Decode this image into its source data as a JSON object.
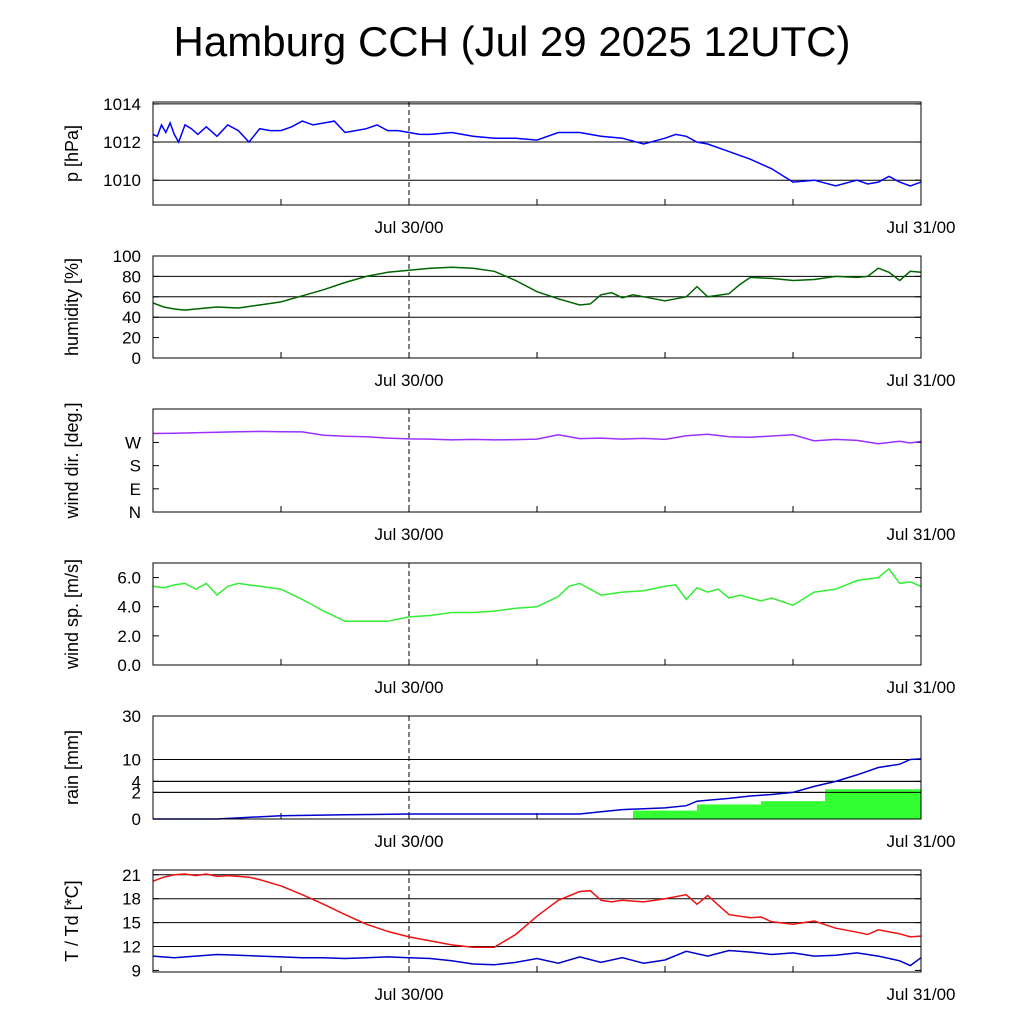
{
  "title": "Hamburg CCH (Jul 29 2025 12UTC)",
  "chart_data": {
    "type": "line",
    "x_range_hours": [
      0,
      36
    ],
    "x_ticks": [
      {
        "h": 12,
        "label": "Jul 30/00"
      },
      {
        "h": 36,
        "label": "Jul 31/00"
      }
    ],
    "panels": [
      {
        "id": "pressure",
        "ylabel": "p [hPa]",
        "scale": "linear",
        "ylim": [
          1008.7,
          1014.1
        ],
        "yticks": [
          1010,
          1012,
          1014
        ],
        "yticklabels": [
          "1010",
          "1012",
          "1014"
        ],
        "grid": [
          1010,
          1012,
          1014
        ],
        "series": [
          {
            "color": "#0000ff",
            "x": [
              0,
              0.2,
              0.4,
              0.6,
              0.8,
              1.0,
              1.2,
              1.5,
              1.8,
              2.1,
              2.5,
              3.0,
              3.5,
              4.0,
              4.5,
              5.0,
              5.5,
              6.0,
              6.5,
              7.0,
              7.5,
              8.0,
              8.5,
              9.0,
              9.5,
              10.0,
              10.5,
              11.0,
              11.5,
              12.0,
              12.5,
              13.0,
              14.0,
              15.0,
              16.0,
              17.0,
              18.0,
              19.0,
              20.0,
              20.5,
              21.0,
              22.0,
              23.0,
              24.0,
              24.5,
              25.0,
              25.5,
              26.0,
              27.0,
              28.0,
              29.0,
              30.0,
              31.0,
              32.0,
              33.0,
              33.5,
              34.0,
              34.5,
              35.0,
              35.5,
              36.0
            ],
            "y": [
              1012.4,
              1012.3,
              1012.9,
              1012.5,
              1013.0,
              1012.4,
              1012.0,
              1012.9,
              1012.7,
              1012.4,
              1012.8,
              1012.3,
              1012.9,
              1012.6,
              1012.0,
              1012.7,
              1012.6,
              1012.6,
              1012.8,
              1013.1,
              1012.9,
              1013.0,
              1013.1,
              1012.5,
              1012.6,
              1012.7,
              1012.9,
              1012.6,
              1012.6,
              1012.5,
              1012.4,
              1012.4,
              1012.5,
              1012.3,
              1012.2,
              1012.2,
              1012.1,
              1012.5,
              1012.5,
              1012.4,
              1012.3,
              1012.2,
              1011.9,
              1012.2,
              1012.4,
              1012.3,
              1012.0,
              1011.9,
              1011.5,
              1011.1,
              1010.6,
              1009.9,
              1010.0,
              1009.7,
              1010.0,
              1009.8,
              1009.9,
              1010.2,
              1009.9,
              1009.7,
              1009.9
            ]
          }
        ]
      },
      {
        "id": "humidity",
        "ylabel": "humidity [%]",
        "scale": "linear",
        "ylim": [
          0,
          100
        ],
        "yticks": [
          0,
          20,
          40,
          60,
          80,
          100
        ],
        "yticklabels": [
          "0",
          "20",
          "40",
          "60",
          "80",
          "100"
        ],
        "grid": [
          40,
          60,
          80
        ],
        "series": [
          {
            "color": "#006400",
            "x": [
              0,
              0.5,
              1.0,
              1.5,
              2.0,
              3.0,
              4.0,
              5.0,
              6.0,
              7.0,
              8.0,
              9.0,
              10.0,
              11.0,
              12.0,
              13.0,
              14.0,
              15.0,
              16.0,
              17.0,
              18.0,
              19.0,
              20.0,
              20.5,
              21.0,
              21.5,
              22.0,
              22.5,
              23.0,
              23.5,
              24.0,
              24.5,
              25.0,
              25.5,
              26.0,
              27.0,
              27.5,
              28.0,
              29.0,
              30.0,
              31.0,
              32.0,
              33.0,
              33.5,
              34.0,
              34.5,
              35.0,
              35.5,
              36.0
            ],
            "y": [
              54,
              50,
              48,
              47,
              48,
              50,
              49,
              52,
              55,
              61,
              67,
              74,
              80,
              84,
              86,
              88,
              89,
              88,
              85,
              76,
              65,
              58,
              52,
              53,
              62,
              64,
              59,
              62,
              60,
              58,
              56,
              58,
              60,
              70,
              60,
              63,
              72,
              79,
              78,
              76,
              77,
              80,
              79,
              80,
              88,
              84,
              76,
              85,
              84
            ]
          }
        ]
      },
      {
        "id": "wind_dir",
        "ylabel": "wind dir. [deg.]",
        "scale": "linear",
        "ylim": [
          0,
          400
        ],
        "yticks": [
          0,
          90,
          180,
          270
        ],
        "yticklabels": [
          "N",
          "E",
          "S",
          "W"
        ],
        "grid": [],
        "series": [
          {
            "color": "#9b30ff",
            "x": [
              0,
              1,
              2,
              3,
              4,
              5,
              6,
              7,
              8,
              9,
              10,
              11,
              12,
              13,
              14,
              15,
              16,
              17,
              18,
              19,
              20,
              21,
              22,
              23,
              24,
              25,
              26,
              27,
              28,
              29,
              30,
              31,
              32,
              33,
              34,
              35,
              35.5,
              36
            ],
            "y": [
              305,
              306,
              308,
              310,
              312,
              313,
              312,
              311,
              298,
              294,
              292,
              287,
              284,
              283,
              280,
              282,
              280,
              281,
              283,
              300,
              285,
              287,
              283,
              286,
              282,
              296,
              302,
              292,
              290,
              295,
              300,
              276,
              282,
              278,
              265,
              275,
              268,
              274
            ]
          }
        ]
      },
      {
        "id": "wind_speed",
        "ylabel": "wind sp. [m/s]",
        "scale": "linear",
        "ylim": [
          0,
          7
        ],
        "yticks": [
          0,
          2,
          4,
          6
        ],
        "yticklabels": [
          "0.0",
          "2.0",
          "4.0",
          "6.0"
        ],
        "grid": [],
        "series": [
          {
            "color": "#33ee33",
            "x": [
              0,
              0.5,
              1.0,
              1.5,
              2.0,
              2.5,
              3.0,
              3.5,
              4.0,
              4.5,
              5.0,
              6.0,
              7.0,
              8.0,
              9.0,
              10.0,
              11.0,
              12.0,
              13.0,
              14.0,
              15.0,
              16.0,
              17.0,
              18.0,
              19.0,
              19.5,
              20.0,
              20.5,
              21.0,
              22.0,
              23.0,
              24.0,
              24.5,
              25.0,
              25.5,
              26.0,
              26.5,
              27.0,
              27.5,
              28.0,
              28.5,
              29.0,
              30.0,
              31.0,
              32.0,
              33.0,
              34.0,
              34.5,
              35.0,
              35.5,
              36.0
            ],
            "y": [
              5.4,
              5.3,
              5.5,
              5.6,
              5.2,
              5.6,
              4.8,
              5.4,
              5.6,
              5.5,
              5.4,
              5.2,
              4.5,
              3.7,
              3.0,
              3.0,
              3.0,
              3.3,
              3.4,
              3.6,
              3.6,
              3.7,
              3.9,
              4.0,
              4.7,
              5.4,
              5.6,
              5.2,
              4.8,
              5.0,
              5.1,
              5.4,
              5.5,
              4.5,
              5.3,
              5.0,
              5.2,
              4.6,
              4.8,
              4.6,
              4.4,
              4.6,
              4.1,
              5.0,
              5.2,
              5.8,
              6.0,
              6.6,
              5.6,
              5.7,
              5.4
            ]
          }
        ]
      },
      {
        "id": "rain",
        "ylabel": "rain [mm]",
        "scale": "sqrt",
        "ylim": [
          0,
          30
        ],
        "yticks": [
          0,
          2,
          4,
          10,
          30
        ],
        "yticklabels": [
          "0",
          "2",
          "4",
          "10",
          "30"
        ],
        "grid": [
          2,
          4,
          10,
          30
        ],
        "bars": [
          {
            "x0": 22.5,
            "x1": 25.5,
            "value": 0.2
          },
          {
            "x0": 25.5,
            "x1": 28.5,
            "value": 0.6
          },
          {
            "x0": 28.5,
            "x1": 31.5,
            "value": 0.9
          },
          {
            "x0": 31.5,
            "x1": 36.0,
            "value": 2.5
          }
        ],
        "bar_color": "#33ff33",
        "series": [
          {
            "color": "#0000cc",
            "x": [
              0,
              3,
              6,
              9,
              12,
              15,
              18,
              20,
              21,
              22,
              23,
              24,
              25,
              25.5,
              26,
              27,
              28,
              29,
              30,
              31,
              32,
              33,
              34,
              35,
              35.5,
              36
            ],
            "y": [
              0,
              0,
              0.03,
              0.05,
              0.07,
              0.07,
              0.07,
              0.07,
              0.15,
              0.25,
              0.3,
              0.35,
              0.5,
              0.9,
              1.0,
              1.2,
              1.5,
              1.7,
              2.0,
              3.0,
              4.0,
              5.5,
              7.5,
              8.5,
              10,
              10.2
            ]
          }
        ]
      },
      {
        "id": "temperature",
        "ylabel": "T / Td [*C]",
        "scale": "linear",
        "ylim": [
          8.8,
          21.6
        ],
        "yticks": [
          9,
          12,
          15,
          18,
          21
        ],
        "yticklabels": [
          "9",
          "12",
          "15",
          "18",
          "21"
        ],
        "grid": [
          12,
          15,
          18,
          21
        ],
        "series": [
          {
            "color": "#ee1111",
            "x": [
              0,
              0.5,
              1.0,
              1.5,
              2.0,
              2.5,
              3.0,
              3.5,
              4.0,
              4.5,
              5.0,
              6.0,
              7.0,
              8.0,
              9.0,
              10.0,
              11.0,
              12.0,
              13.0,
              14.0,
              15.0,
              16.0,
              17.0,
              18.0,
              19.0,
              20.0,
              20.5,
              21.0,
              21.5,
              22.0,
              23.0,
              24.0,
              25.0,
              25.5,
              26.0,
              26.5,
              27.0,
              28.0,
              28.5,
              29.0,
              30.0,
              31.0,
              32.0,
              33.0,
              33.5,
              34.0,
              35.0,
              35.5,
              36.0
            ],
            "y": [
              20.2,
              20.7,
              21.0,
              21.1,
              20.9,
              21.1,
              20.8,
              20.9,
              20.8,
              20.7,
              20.4,
              19.6,
              18.5,
              17.3,
              16.0,
              14.8,
              13.9,
              13.2,
              12.7,
              12.2,
              11.9,
              11.9,
              13.5,
              15.8,
              17.8,
              18.9,
              19.0,
              17.8,
              17.6,
              17.8,
              17.6,
              18.0,
              18.5,
              17.3,
              18.4,
              17.2,
              16.0,
              15.6,
              15.7,
              15.1,
              14.8,
              15.2,
              14.3,
              13.8,
              13.5,
              14.1,
              13.6,
              13.2,
              13.3
            ]
          },
          {
            "color": "#0000cc",
            "x": [
              0,
              1,
              2,
              3,
              4,
              5,
              6,
              7,
              8,
              9,
              10,
              11,
              12,
              13,
              14,
              15,
              16,
              17,
              18,
              19,
              20,
              21,
              22,
              23,
              24,
              25,
              26,
              27,
              28,
              29,
              30,
              31,
              32,
              33,
              34,
              35,
              35.5,
              36
            ],
            "y": [
              10.8,
              10.6,
              10.8,
              11.0,
              10.9,
              10.8,
              10.7,
              10.6,
              10.6,
              10.5,
              10.6,
              10.7,
              10.6,
              10.5,
              10.2,
              9.8,
              9.7,
              10.0,
              10.5,
              9.9,
              10.7,
              10.0,
              10.6,
              9.9,
              10.3,
              11.4,
              10.8,
              11.5,
              11.3,
              11.0,
              11.2,
              10.8,
              10.9,
              11.2,
              10.8,
              10.2,
              9.6,
              10.6
            ]
          }
        ]
      }
    ]
  }
}
